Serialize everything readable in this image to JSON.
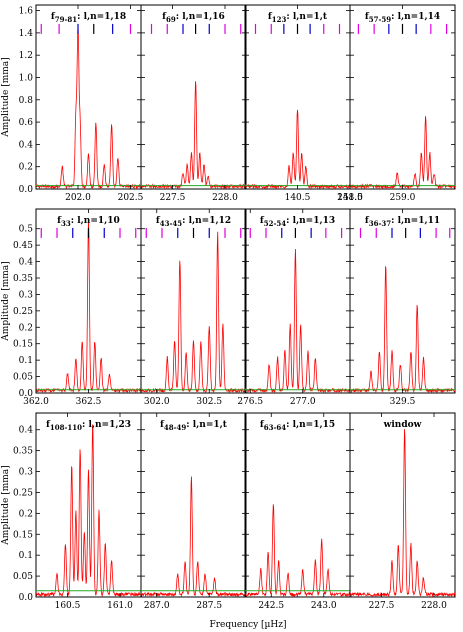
{
  "figure": {
    "xlabel": "Frequency [µHz]",
    "ylabel": "Amplitude [mma]",
    "colors": {
      "spectrum": "#ff0000",
      "threshold": "#22aa22",
      "marker_magenta": "#e000e0",
      "marker_blue": "#0000cc",
      "marker_black": "#000000"
    }
  },
  "chart_data": [
    {
      "type": "line",
      "row": 0,
      "col": 0,
      "label_main": "f",
      "label_sub": "79-81",
      "label_rest": ": l,n=1,18",
      "xlim": [
        201.6,
        202.6
      ],
      "ylim": [
        0,
        1.65
      ],
      "yticks": [
        0,
        0.2,
        0.4,
        0.6,
        0.8,
        1.0,
        1.2,
        1.4,
        1.6
      ],
      "ytick_labels": [
        "0.0",
        "0.2",
        "0.4",
        "0.6",
        "0.8",
        "1.0",
        "1.2",
        "1.4",
        "1.6"
      ],
      "xticks": [
        202.0,
        202.5
      ],
      "xtick_labels": [
        "202.0",
        "202.5"
      ],
      "threshold": 0.03,
      "peaks": [
        [
          201.85,
          0.18
        ],
        [
          201.98,
          0.62
        ],
        [
          202.0,
          1.37
        ],
        [
          202.02,
          0.55
        ],
        [
          202.1,
          0.3
        ],
        [
          202.17,
          0.58
        ],
        [
          202.25,
          0.2
        ],
        [
          202.32,
          0.55
        ],
        [
          202.38,
          0.25
        ]
      ],
      "markers": [
        [
          "m",
          201.65
        ],
        [
          "m",
          201.82
        ],
        [
          "b",
          202.0
        ],
        [
          "k",
          202.15
        ],
        [
          "b",
          202.33
        ],
        [
          "m",
          202.5
        ]
      ]
    },
    {
      "type": "line",
      "row": 0,
      "col": 1,
      "label_main": "f",
      "label_sub": "69",
      "label_rest": ": l,n=1,16",
      "xlim": [
        227.2,
        228.2
      ],
      "ylim": [
        0,
        1.65
      ],
      "xticks": [
        227.5,
        228.0
      ],
      "xtick_labels": [
        "227.5",
        "228.0"
      ],
      "threshold": 0.03,
      "peaks": [
        [
          227.64,
          0.2
        ],
        [
          227.68,
          0.3
        ],
        [
          227.72,
          0.95
        ],
        [
          227.76,
          0.3
        ],
        [
          227.8,
          0.2
        ],
        [
          227.6,
          0.12
        ],
        [
          227.84,
          0.1
        ]
      ],
      "markers": [
        [
          "m",
          227.3
        ],
        [
          "m",
          227.45
        ],
        [
          "b",
          227.6
        ],
        [
          "k",
          227.72
        ],
        [
          "b",
          227.85
        ],
        [
          "m",
          228.0
        ],
        [
          "m",
          228.15
        ]
      ]
    },
    {
      "type": "line",
      "row": 0,
      "col": 2,
      "label_main": "f",
      "label_sub": "123",
      "label_rest": ": l,n=1,t",
      "xlim": [
        140.0,
        141.0
      ],
      "ylim": [
        0,
        1.65
      ],
      "xticks": [
        140.5,
        141.0
      ],
      "xtick_labels": [
        "140.5",
        "141.0"
      ],
      "threshold": 0.03,
      "peaks": [
        [
          140.42,
          0.18
        ],
        [
          140.46,
          0.3
        ],
        [
          140.5,
          0.7
        ],
        [
          140.54,
          0.3
        ],
        [
          140.58,
          0.18
        ]
      ],
      "markers": [
        [
          "m",
          140.1
        ],
        [
          "m",
          140.25
        ],
        [
          "b",
          140.37
        ],
        [
          "k",
          140.5
        ],
        [
          "b",
          140.62
        ],
        [
          "m",
          140.75
        ],
        [
          "m",
          140.9
        ]
      ]
    },
    {
      "type": "line",
      "row": 0,
      "col": 3,
      "label_main": "f",
      "label_sub": "57-59",
      "label_rest": ": l,n=1,14",
      "xlim": [
        258.5,
        259.5
      ],
      "ylim": [
        0,
        1.65
      ],
      "xticks": [
        258.5,
        259.0
      ],
      "xtick_labels": [
        "258.5",
        "259.0"
      ],
      "threshold": 0.03,
      "peaks": [
        [
          259.12,
          0.12
        ],
        [
          259.18,
          0.3
        ],
        [
          259.22,
          0.62
        ],
        [
          259.26,
          0.3
        ],
        [
          259.3,
          0.12
        ],
        [
          258.95,
          0.12
        ]
      ],
      "markers": [
        [
          "m",
          258.58
        ],
        [
          "m",
          258.73
        ],
        [
          "b",
          258.87
        ],
        [
          "k",
          259.0
        ],
        [
          "b",
          259.13
        ],
        [
          "m",
          259.27
        ],
        [
          "m",
          259.42
        ]
      ]
    },
    {
      "type": "line",
      "row": 1,
      "col": 0,
      "label_main": "f",
      "label_sub": "33",
      "label_rest": ": l,n=1,10",
      "xlim": [
        362.0,
        363.0
      ],
      "ylim": [
        0,
        0.56
      ],
      "yticks": [
        0,
        0.05,
        0.1,
        0.15,
        0.2,
        0.25,
        0.3,
        0.35,
        0.4,
        0.45,
        0.5
      ],
      "ytick_labels": [
        "0.0",
        "0.05",
        "0.1",
        "0.15",
        "0.2",
        "0.25",
        "0.3",
        "0.35",
        "0.4",
        "0.45",
        "0.5"
      ],
      "xticks": [
        362.0,
        362.5
      ],
      "xtick_labels": [
        "362.0",
        "362.5"
      ],
      "threshold": 0.01,
      "peaks": [
        [
          362.38,
          0.1
        ],
        [
          362.44,
          0.15
        ],
        [
          362.5,
          0.52
        ],
        [
          362.56,
          0.15
        ],
        [
          362.62,
          0.1
        ],
        [
          362.3,
          0.05
        ],
        [
          362.7,
          0.05
        ]
      ],
      "markers": [
        [
          "m",
          362.05
        ],
        [
          "m",
          362.2
        ],
        [
          "b",
          362.35
        ],
        [
          "k",
          362.5
        ],
        [
          "b",
          362.65
        ],
        [
          "m",
          362.8
        ],
        [
          "m",
          362.95
        ]
      ]
    },
    {
      "type": "line",
      "row": 1,
      "col": 1,
      "label_main": "f",
      "label_sub": "43-45",
      "label_rest": ": l,n=1,12",
      "xlim": [
        301.85,
        302.85
      ],
      "ylim": [
        0,
        0.56
      ],
      "xticks": [
        302.0,
        302.5
      ],
      "xtick_labels": [
        "302.0",
        "302.5"
      ],
      "threshold": 0.01,
      "peaks": [
        [
          302.1,
          0.1
        ],
        [
          302.17,
          0.15
        ],
        [
          302.22,
          0.4
        ],
        [
          302.28,
          0.12
        ],
        [
          302.35,
          0.15
        ],
        [
          302.42,
          0.15
        ],
        [
          302.5,
          0.2
        ],
        [
          302.58,
          0.48
        ],
        [
          302.63,
          0.2
        ]
      ],
      "markers": [
        [
          "m",
          301.9
        ],
        [
          "m",
          302.05
        ],
        [
          "b",
          302.2
        ],
        [
          "k",
          302.35
        ],
        [
          "b",
          302.5
        ],
        [
          "m",
          302.65
        ],
        [
          "m",
          302.8
        ]
      ]
    },
    {
      "type": "line",
      "row": 1,
      "col": 2,
      "label_main": "f",
      "label_sub": "52-54",
      "label_rest": ": l,n=1,13",
      "xlim": [
        276.45,
        277.45
      ],
      "ylim": [
        0,
        0.56
      ],
      "xticks": [
        276.5,
        277.0
      ],
      "xtick_labels": [
        "276.5",
        "277.0"
      ],
      "threshold": 0.01,
      "peaks": [
        [
          276.68,
          0.08
        ],
        [
          276.76,
          0.1
        ],
        [
          276.83,
          0.12
        ],
        [
          276.88,
          0.2
        ],
        [
          276.93,
          0.43
        ],
        [
          276.98,
          0.2
        ],
        [
          277.05,
          0.12
        ],
        [
          277.12,
          0.1
        ]
      ],
      "markers": [
        [
          "m",
          276.5
        ],
        [
          "m",
          276.65
        ],
        [
          "b",
          276.8
        ],
        [
          "k",
          276.93
        ],
        [
          "b",
          277.08
        ],
        [
          "m",
          277.22
        ],
        [
          "m",
          277.37
        ]
      ]
    },
    {
      "type": "line",
      "row": 1,
      "col": 3,
      "label_main": "f",
      "label_sub": "36-37",
      "label_rest": ": l,n=1,11",
      "xlim": [
        329.0,
        330.0
      ],
      "ylim": [
        0,
        0.56
      ],
      "xticks": [
        329.5
      ],
      "xtick_labels": [
        "329.5"
      ],
      "threshold": 0.01,
      "peaks": [
        [
          329.2,
          0.06
        ],
        [
          329.28,
          0.12
        ],
        [
          329.34,
          0.38
        ],
        [
          329.4,
          0.12
        ],
        [
          329.48,
          0.08
        ],
        [
          329.58,
          0.12
        ],
        [
          329.64,
          0.26
        ],
        [
          329.7,
          0.1
        ]
      ],
      "markers": [
        [
          "m",
          329.1
        ],
        [
          "m",
          329.25
        ],
        [
          "b",
          329.4
        ],
        [
          "k",
          329.53
        ],
        [
          "b",
          329.67
        ],
        [
          "m",
          329.82
        ],
        [
          "m",
          329.95
        ]
      ]
    },
    {
      "type": "line",
      "row": 2,
      "col": 0,
      "label_main": "f",
      "label_sub": "108-110",
      "label_rest": ": l,n=1,23",
      "xlim": [
        160.2,
        161.2
      ],
      "ylim": [
        0,
        0.44
      ],
      "yticks": [
        0,
        0.05,
        0.1,
        0.15,
        0.2,
        0.25,
        0.3,
        0.35,
        0.4
      ],
      "ytick_labels": [
        "0.0",
        "0.05",
        "0.1",
        "0.15",
        "0.2",
        "0.25",
        "0.3",
        "0.35",
        "0.4"
      ],
      "xticks": [
        160.5,
        161.0
      ],
      "xtick_labels": [
        "160.5",
        "161.0"
      ],
      "threshold": 0.015,
      "peaks": [
        [
          160.4,
          0.05
        ],
        [
          160.48,
          0.12
        ],
        [
          160.54,
          0.31
        ],
        [
          160.58,
          0.2
        ],
        [
          160.62,
          0.35
        ],
        [
          160.66,
          0.15
        ],
        [
          160.7,
          0.3
        ],
        [
          160.74,
          0.41
        ],
        [
          160.8,
          0.2
        ],
        [
          160.86,
          0.12
        ],
        [
          160.92,
          0.08
        ]
      ],
      "markers": []
    },
    {
      "type": "line",
      "row": 2,
      "col": 1,
      "label_main": "f",
      "label_sub": "48-49",
      "label_rest": ": l,n=1,t",
      "xlim": [
        286.85,
        287.85
      ],
      "ylim": [
        0,
        0.44
      ],
      "xticks": [
        287.0,
        287.5
      ],
      "xtick_labels": [
        "287.0",
        "287.5"
      ],
      "threshold": 0.015,
      "peaks": [
        [
          287.2,
          0.05
        ],
        [
          287.27,
          0.08
        ],
        [
          287.33,
          0.28
        ],
        [
          287.39,
          0.08
        ],
        [
          287.46,
          0.05
        ],
        [
          287.55,
          0.04
        ]
      ],
      "markers": []
    },
    {
      "type": "line",
      "row": 2,
      "col": 2,
      "label_main": "f",
      "label_sub": "63-64",
      "label_rest": ": l,n=1,15",
      "xlim": [
        242.25,
        243.25
      ],
      "ylim": [
        0,
        0.44
      ],
      "xticks": [
        242.5,
        243.0
      ],
      "xtick_labels": [
        "242.5",
        "243.0"
      ],
      "threshold": 0.015,
      "peaks": [
        [
          242.4,
          0.06
        ],
        [
          242.47,
          0.1
        ],
        [
          242.52,
          0.22
        ],
        [
          242.57,
          0.08
        ],
        [
          242.66,
          0.05
        ],
        [
          242.8,
          0.06
        ],
        [
          242.92,
          0.08
        ],
        [
          242.98,
          0.13
        ],
        [
          243.04,
          0.06
        ]
      ],
      "markers": []
    },
    {
      "type": "line",
      "row": 2,
      "col": 3,
      "label_main": "window",
      "label_sub": "",
      "label_rest": "",
      "xlim": [
        227.2,
        228.2
      ],
      "ylim": [
        0,
        0.44
      ],
      "xticks": [
        227.5,
        228.0
      ],
      "xtick_labels": [
        "227.5",
        "228.0"
      ],
      "threshold": 0,
      "peaks": [
        [
          227.6,
          0.08
        ],
        [
          227.66,
          0.12
        ],
        [
          227.72,
          0.4
        ],
        [
          227.78,
          0.12
        ],
        [
          227.84,
          0.08
        ],
        [
          227.9,
          0.04
        ]
      ],
      "markers": []
    }
  ]
}
